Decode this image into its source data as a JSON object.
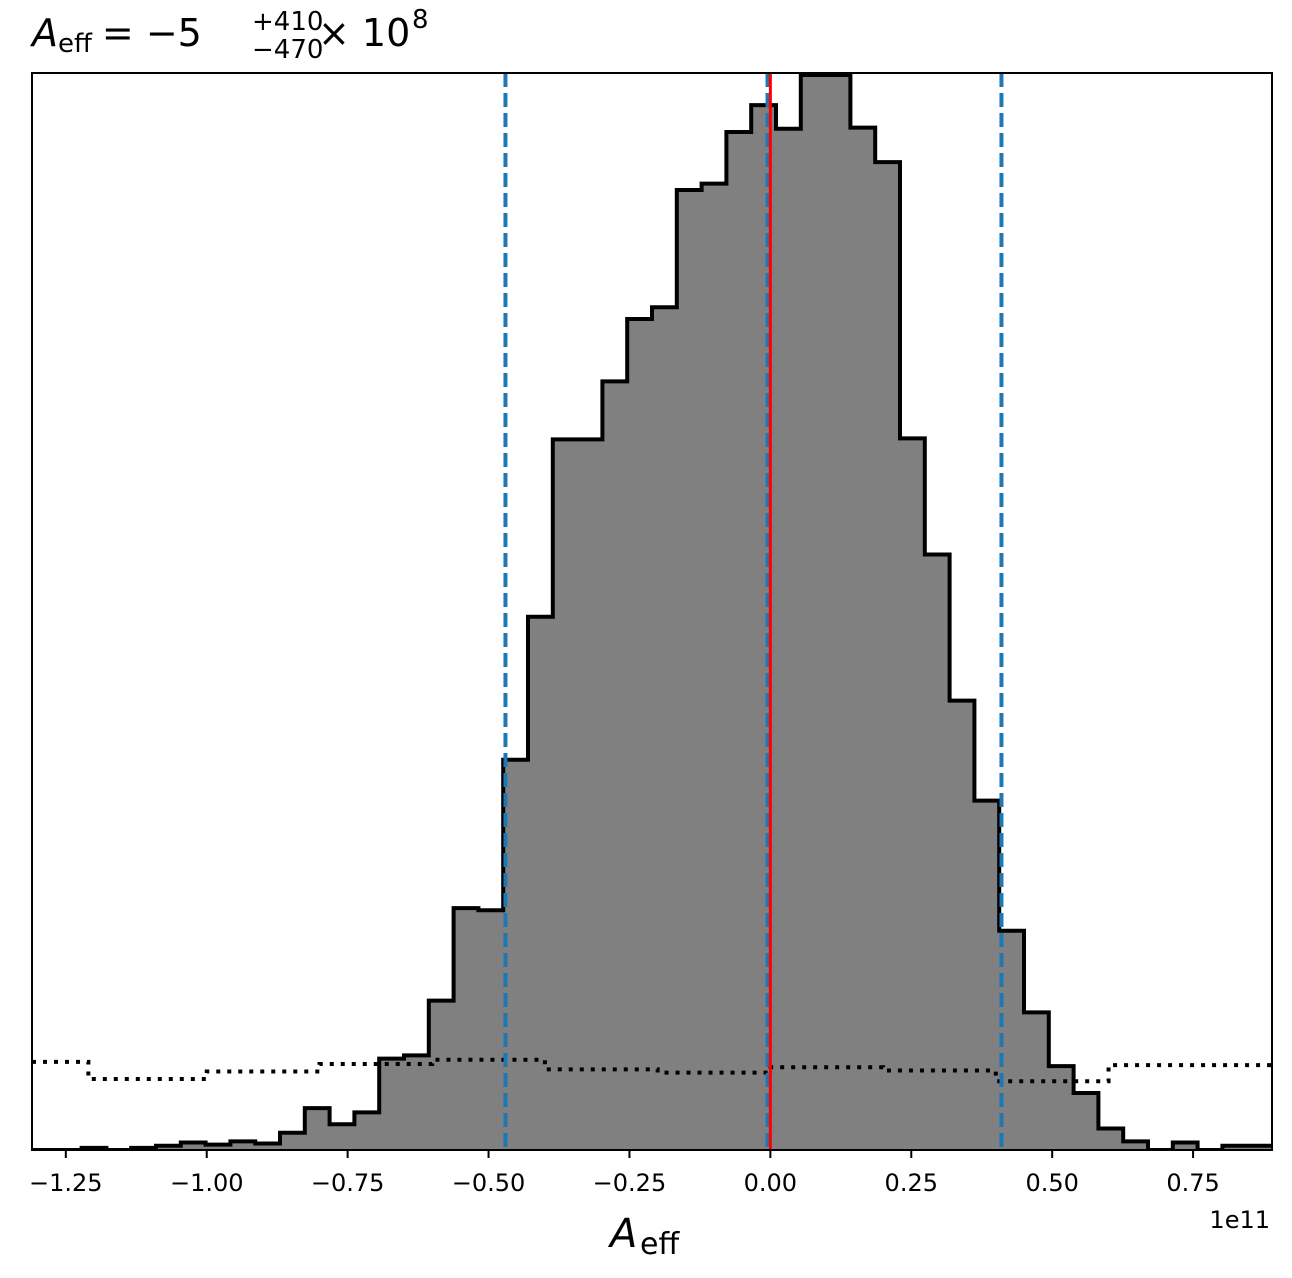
{
  "chart_data": {
    "type": "histogram",
    "title": {
      "symbol": "A",
      "symbol_sub": "eff",
      "equals": "= −5",
      "sup": "+410",
      "sub": "−470",
      "times": "× 10",
      "exp": "8"
    },
    "xlabel": {
      "symbol": "A",
      "sub": "eff"
    },
    "x_offset_label": "1e11",
    "xlim": [
      -1.31,
      0.89
    ],
    "ylim": [
      0,
      1.0
    ],
    "x_ticks": [
      -1.25,
      -1.0,
      -0.75,
      -0.5,
      -0.25,
      0.0,
      0.25,
      0.5,
      0.75
    ],
    "x_tick_labels": [
      "−1.25",
      "−1.00",
      "−0.75",
      "−0.50",
      "−0.25",
      "0.00",
      "0.25",
      "0.50",
      "0.75"
    ],
    "posterior": {
      "bin_edges": [
        -1.31,
        -1.266,
        -1.222,
        -1.178,
        -1.134,
        -1.09,
        -1.046,
        -1.002,
        -0.958,
        -0.914,
        -0.87,
        -0.826,
        -0.782,
        -0.738,
        -0.694,
        -0.65,
        -0.606,
        -0.562,
        -0.518,
        -0.474,
        -0.43,
        -0.386,
        -0.342,
        -0.298,
        -0.254,
        -0.21,
        -0.166,
        -0.122,
        -0.078,
        -0.034,
        0.01,
        0.054,
        0.098,
        0.142,
        0.186,
        0.23,
        0.274,
        0.318,
        0.362,
        0.406,
        0.45,
        0.494,
        0.538,
        0.582,
        0.626,
        0.67,
        0.714,
        0.758,
        0.802,
        0.846,
        0.89
      ],
      "counts": [
        0.0,
        0.0,
        0.002,
        0.0,
        0.002,
        0.004,
        0.007,
        0.005,
        0.008,
        0.006,
        0.016,
        0.039,
        0.024,
        0.035,
        0.085,
        0.088,
        0.139,
        0.225,
        0.223,
        0.363,
        0.496,
        0.661,
        0.661,
        0.715,
        0.773,
        0.784,
        0.893,
        0.899,
        0.947,
        0.972,
        0.95,
        1.0,
        1.0,
        0.951,
        0.919,
        0.662,
        0.554,
        0.418,
        0.325,
        0.204,
        0.128,
        0.078,
        0.053,
        0.02,
        0.008,
        0.0,
        0.007,
        0.0,
        0.004,
        0.004
      ]
    },
    "prior": {
      "x": [
        -1.31,
        -1.21,
        -1.21,
        -1.0,
        -1.0,
        -0.8,
        -0.8,
        -0.6,
        -0.6,
        -0.4,
        -0.4,
        -0.2,
        -0.2,
        0.0,
        0.0,
        0.2,
        0.2,
        0.4,
        0.4,
        0.6,
        0.6,
        0.89
      ],
      "y": [
        0.082,
        0.082,
        0.066,
        0.066,
        0.073,
        0.073,
        0.08,
        0.08,
        0.084,
        0.084,
        0.075,
        0.075,
        0.072,
        0.072,
        0.077,
        0.077,
        0.074,
        0.074,
        0.064,
        0.064,
        0.079,
        0.079
      ]
    },
    "credible_interval": [
      -0.47,
      0.41
    ],
    "median": -0.005,
    "truth": 0.0,
    "colors": {
      "fill": "#808080",
      "edge": "#000000",
      "interval": "#1f77b4",
      "truth": "#ff0000",
      "prior": "#000000"
    },
    "grid": false
  }
}
